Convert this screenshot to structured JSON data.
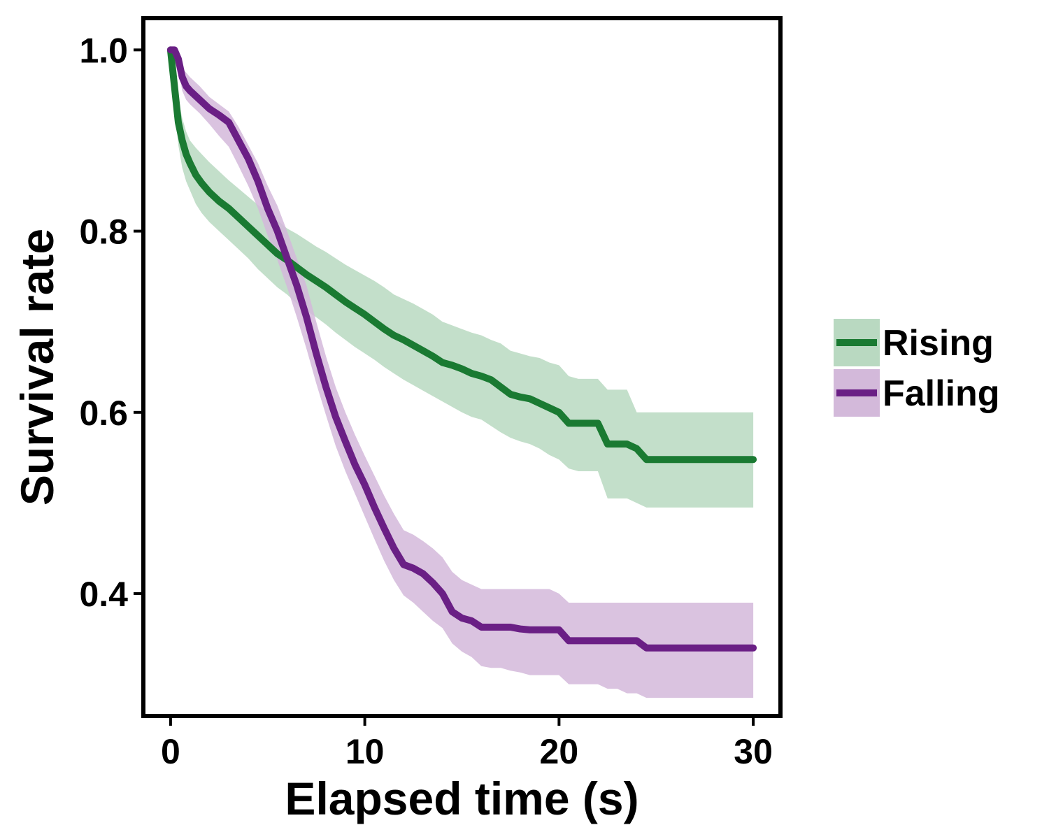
{
  "chart_data": {
    "type": "line",
    "subtype": "survival-curve-with-confidence-band",
    "title": "",
    "xlabel": "Elapsed time (s)",
    "ylabel": "Survival rate",
    "xlim": [
      -1.4,
      31.4
    ],
    "ylim": [
      0.265,
      1.035
    ],
    "x_ticks": [
      0,
      10,
      20,
      30
    ],
    "x_tick_labels": [
      "0",
      "10",
      "20",
      "30"
    ],
    "y_ticks": [
      0.4,
      0.6,
      0.8,
      1.0
    ],
    "y_tick_labels": [
      "0.4",
      "0.6",
      "0.8",
      "1.0"
    ],
    "grid": false,
    "legend_position": "right",
    "series": [
      {
        "name": "Rising",
        "color": "#1a7a32",
        "band_color": "#b9d9c1",
        "x": [
          0,
          0.2,
          0.4,
          0.6,
          0.8,
          1.0,
          1.3,
          1.6,
          2.0,
          2.5,
          3.0,
          3.5,
          4.0,
          4.5,
          5.0,
          5.5,
          6.0,
          6.5,
          7.0,
          7.5,
          8.0,
          8.5,
          9.0,
          9.5,
          10.0,
          10.5,
          11.0,
          11.5,
          12.0,
          12.5,
          13.0,
          13.5,
          14.0,
          14.5,
          15.0,
          15.5,
          16.0,
          16.5,
          17.0,
          17.5,
          18.0,
          18.5,
          19.0,
          19.5,
          20.0,
          20.5,
          21.0,
          21.5,
          22.0,
          22.5,
          23.0,
          23.5,
          24.0,
          24.5,
          25.0,
          26.0,
          27.0,
          28.0,
          29.0,
          30.0
        ],
        "y": [
          1.0,
          0.96,
          0.92,
          0.9,
          0.885,
          0.875,
          0.862,
          0.853,
          0.843,
          0.833,
          0.825,
          0.815,
          0.805,
          0.795,
          0.785,
          0.775,
          0.768,
          0.76,
          0.752,
          0.745,
          0.738,
          0.73,
          0.722,
          0.715,
          0.708,
          0.7,
          0.692,
          0.685,
          0.68,
          0.674,
          0.668,
          0.662,
          0.655,
          0.652,
          0.648,
          0.643,
          0.64,
          0.636,
          0.628,
          0.62,
          0.617,
          0.615,
          0.61,
          0.605,
          0.6,
          0.588,
          0.588,
          0.588,
          0.588,
          0.565,
          0.565,
          0.565,
          0.56,
          0.548,
          0.548,
          0.548,
          0.548,
          0.548,
          0.548,
          0.548
        ],
        "lower": [
          1.0,
          0.94,
          0.895,
          0.87,
          0.855,
          0.845,
          0.83,
          0.82,
          0.81,
          0.8,
          0.79,
          0.78,
          0.77,
          0.758,
          0.748,
          0.738,
          0.73,
          0.72,
          0.712,
          0.705,
          0.697,
          0.688,
          0.68,
          0.672,
          0.665,
          0.658,
          0.65,
          0.643,
          0.636,
          0.63,
          0.624,
          0.618,
          0.612,
          0.606,
          0.6,
          0.595,
          0.592,
          0.585,
          0.578,
          0.572,
          0.568,
          0.565,
          0.56,
          0.553,
          0.548,
          0.538,
          0.535,
          0.535,
          0.535,
          0.505,
          0.505,
          0.505,
          0.5,
          0.495,
          0.495,
          0.495,
          0.495,
          0.495,
          0.495,
          0.495
        ],
        "upper": [
          1.0,
          0.975,
          0.945,
          0.925,
          0.91,
          0.9,
          0.892,
          0.885,
          0.876,
          0.866,
          0.856,
          0.847,
          0.838,
          0.829,
          0.82,
          0.812,
          0.803,
          0.797,
          0.79,
          0.783,
          0.777,
          0.77,
          0.763,
          0.757,
          0.751,
          0.745,
          0.738,
          0.73,
          0.725,
          0.72,
          0.714,
          0.708,
          0.7,
          0.696,
          0.692,
          0.688,
          0.685,
          0.68,
          0.676,
          0.668,
          0.665,
          0.662,
          0.66,
          0.655,
          0.652,
          0.64,
          0.637,
          0.637,
          0.637,
          0.625,
          0.625,
          0.625,
          0.6,
          0.6,
          0.6,
          0.6,
          0.6,
          0.6,
          0.6,
          0.6
        ]
      },
      {
        "name": "Falling",
        "color": "#6a1f85",
        "band_color": "#d3b9da",
        "x": [
          0,
          0.2,
          0.4,
          0.6,
          0.8,
          1.0,
          1.5,
          2.0,
          2.5,
          3.0,
          3.5,
          4.0,
          4.5,
          5.0,
          5.5,
          6.0,
          6.5,
          7.0,
          7.5,
          8.0,
          8.5,
          9.0,
          9.5,
          10.0,
          10.5,
          11.0,
          11.5,
          12.0,
          12.5,
          13.0,
          13.5,
          14.0,
          14.5,
          15.0,
          15.5,
          16.0,
          16.5,
          17.0,
          17.5,
          18.0,
          18.5,
          19.0,
          19.5,
          20.0,
          20.5,
          21.0,
          21.5,
          22.0,
          22.5,
          23.0,
          23.5,
          24.0,
          24.5,
          25.0,
          26.0,
          27.0,
          28.0,
          29.0,
          30.0
        ],
        "y": [
          1.0,
          1.0,
          0.99,
          0.97,
          0.96,
          0.955,
          0.945,
          0.935,
          0.928,
          0.92,
          0.9,
          0.88,
          0.855,
          0.825,
          0.8,
          0.77,
          0.74,
          0.705,
          0.665,
          0.628,
          0.595,
          0.568,
          0.542,
          0.52,
          0.495,
          0.472,
          0.45,
          0.432,
          0.428,
          0.422,
          0.412,
          0.4,
          0.38,
          0.373,
          0.37,
          0.363,
          0.363,
          0.363,
          0.363,
          0.361,
          0.36,
          0.36,
          0.36,
          0.36,
          0.348,
          0.348,
          0.348,
          0.348,
          0.348,
          0.348,
          0.348,
          0.348,
          0.34,
          0.34,
          0.34,
          0.34,
          0.34,
          0.34,
          0.34
        ],
        "lower": [
          1.0,
          1.0,
          0.98,
          0.955,
          0.945,
          0.94,
          0.93,
          0.918,
          0.905,
          0.893,
          0.872,
          0.85,
          0.825,
          0.795,
          0.768,
          0.738,
          0.705,
          0.67,
          0.632,
          0.597,
          0.563,
          0.535,
          0.51,
          0.485,
          0.46,
          0.436,
          0.415,
          0.398,
          0.39,
          0.38,
          0.37,
          0.362,
          0.345,
          0.336,
          0.33,
          0.32,
          0.318,
          0.318,
          0.315,
          0.313,
          0.31,
          0.31,
          0.31,
          0.31,
          0.3,
          0.3,
          0.3,
          0.3,
          0.295,
          0.295,
          0.29,
          0.29,
          0.285,
          0.285,
          0.285,
          0.285,
          0.285,
          0.285,
          0.285
        ],
        "upper": [
          1.0,
          1.0,
          0.995,
          0.98,
          0.975,
          0.97,
          0.96,
          0.948,
          0.94,
          0.932,
          0.915,
          0.895,
          0.875,
          0.85,
          0.828,
          0.8,
          0.77,
          0.74,
          0.7,
          0.662,
          0.628,
          0.6,
          0.575,
          0.552,
          0.53,
          0.508,
          0.488,
          0.47,
          0.465,
          0.458,
          0.45,
          0.44,
          0.424,
          0.415,
          0.41,
          0.405,
          0.405,
          0.405,
          0.405,
          0.405,
          0.405,
          0.405,
          0.405,
          0.4,
          0.39,
          0.39,
          0.39,
          0.39,
          0.39,
          0.39,
          0.39,
          0.39,
          0.39,
          0.39,
          0.39,
          0.39,
          0.39,
          0.39,
          0.39
        ]
      }
    ]
  }
}
